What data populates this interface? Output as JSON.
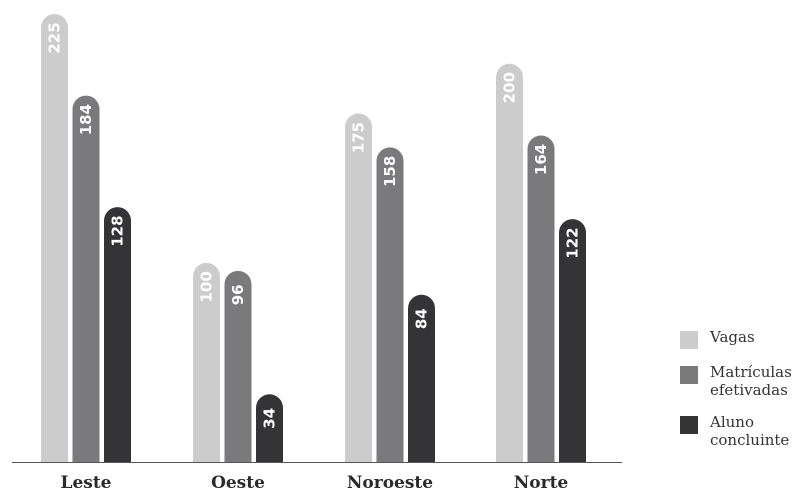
{
  "chart_data": {
    "type": "bar",
    "categories": [
      "Leste",
      "Oeste",
      "Noroeste",
      "Norte"
    ],
    "series": [
      {
        "name": "Vagas",
        "values": [
          225,
          100,
          175,
          200
        ],
        "color": "#cccccc"
      },
      {
        "name": "Matrículas efetivadas",
        "values": [
          184,
          96,
          158,
          164
        ],
        "color": "#7a7a7c"
      },
      {
        "name": "Aluno concluinte",
        "values": [
          128,
          34,
          84,
          122
        ],
        "color": "#343436"
      }
    ],
    "ylim": [
      0,
      225
    ],
    "grid": false,
    "legend_position": "bottom-right",
    "data_labels": "inside-top-rotated"
  }
}
